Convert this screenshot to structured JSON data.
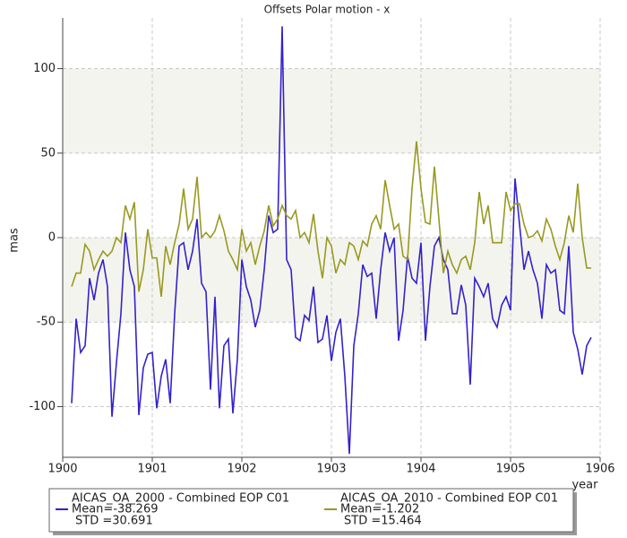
{
  "chart_data": {
    "type": "line",
    "title": "Offsets Polar motion - x",
    "x_label": "year",
    "y_label": "mas",
    "x": [
      1900.1,
      1900.15,
      1900.2,
      1900.25,
      1900.3,
      1900.35,
      1900.4,
      1900.45,
      1900.5,
      1900.55,
      1900.6,
      1900.65,
      1900.7,
      1900.75,
      1900.8,
      1900.85,
      1900.9,
      1900.95,
      1901.0,
      1901.05,
      1901.1,
      1901.15,
      1901.2,
      1901.25,
      1901.3,
      1901.35,
      1901.4,
      1901.45,
      1901.5,
      1901.55,
      1901.6,
      1901.65,
      1901.7,
      1901.75,
      1901.8,
      1901.85,
      1901.9,
      1901.95,
      1902.0,
      1902.05,
      1902.1,
      1902.15,
      1902.2,
      1902.25,
      1902.3,
      1902.35,
      1902.4,
      1902.45,
      1902.5,
      1902.55,
      1902.6,
      1902.65,
      1902.7,
      1902.75,
      1902.8,
      1902.85,
      1902.9,
      1902.95,
      1903.0,
      1903.05,
      1903.1,
      1903.15,
      1903.2,
      1903.25,
      1903.3,
      1903.35,
      1903.4,
      1903.45,
      1903.5,
      1903.55,
      1903.6,
      1903.65,
      1903.7,
      1903.75,
      1903.8,
      1903.85,
      1903.9,
      1903.95,
      1904.0,
      1904.05,
      1904.1,
      1904.15,
      1904.2,
      1904.25,
      1904.3,
      1904.35,
      1904.4,
      1904.45,
      1904.5,
      1904.55,
      1904.6,
      1904.65,
      1904.7,
      1904.75,
      1904.8,
      1904.85,
      1904.9,
      1904.95,
      1905.0,
      1905.05,
      1905.1,
      1905.15,
      1905.2,
      1905.25,
      1905.3,
      1905.35,
      1905.4,
      1905.45,
      1905.5,
      1905.55,
      1905.6,
      1905.65,
      1905.7,
      1905.75,
      1905.8,
      1905.85,
      1905.9
    ],
    "series": [
      {
        "name": "AICAS_OA_2000 - Combined EOP C01",
        "mean_label": "Mean=-38.269",
        "std_label": "STD =30.691",
        "color": "#3322cc",
        "values": [
          -98,
          -48,
          -68,
          -64,
          -24,
          -37,
          -21,
          -13,
          -29,
          -106,
          -74,
          -45,
          3,
          -19,
          -29,
          -105,
          -77,
          -69,
          -68,
          -101,
          -82,
          -72,
          -98,
          -45,
          -5,
          -3,
          -19,
          -8,
          11,
          -27,
          -32,
          -90,
          -35,
          -101,
          -64,
          -60,
          -104,
          -72,
          -13,
          -29,
          -37,
          -53,
          -43,
          -19,
          13,
          3,
          5,
          125,
          -13,
          -19,
          -59,
          -61,
          -46,
          -49,
          -29,
          -62,
          -60,
          -46,
          -73,
          -56,
          -48,
          -82,
          -128,
          -64,
          -45,
          -16,
          -23,
          -21,
          -48,
          -19,
          3,
          -8,
          0,
          -61,
          -43,
          -11,
          -24,
          -27,
          -3,
          -61,
          -29,
          -5,
          0,
          -13,
          -19,
          -45,
          -45,
          -28,
          -40,
          -87,
          -24,
          -29,
          -35,
          -27,
          -48,
          -53,
          -40,
          -35,
          -43,
          35,
          8,
          -19,
          -8,
          -19,
          -27,
          -48,
          -16,
          -21,
          -19,
          -43,
          -45,
          -5,
          -56,
          -66,
          -81,
          -64,
          -59
        ]
      },
      {
        "name": "AICAS_OA_2010 - Combined EOP C01",
        "mean_label": "Mean=-1.202",
        "std_label": "STD =15.464",
        "color": "#999922",
        "values": [
          -29,
          -21,
          -21,
          -4,
          -8,
          -19,
          -13,
          -8,
          -11,
          -8,
          0,
          -3,
          19,
          11,
          21,
          -32,
          -19,
          5,
          -12,
          -12,
          -35,
          -5,
          -16,
          -3,
          8,
          29,
          5,
          11,
          36,
          0,
          3,
          0,
          4,
          13,
          4,
          -8,
          -13,
          -19,
          5,
          -8,
          -3,
          -16,
          -5,
          4,
          19,
          7,
          11,
          19,
          13,
          11,
          16,
          0,
          3,
          -3,
          14,
          -8,
          -24,
          0,
          -5,
          -21,
          -13,
          -16,
          -3,
          -5,
          -13,
          -2,
          -5,
          8,
          13,
          5,
          34,
          19,
          5,
          8,
          -11,
          -13,
          29,
          57,
          29,
          9,
          8,
          42,
          11,
          -21,
          -8,
          -16,
          -21,
          -13,
          -11,
          -19,
          -3,
          27,
          8,
          19,
          -3,
          -3,
          -3,
          27,
          16,
          20,
          20,
          8,
          0,
          1,
          4,
          -2,
          11,
          5,
          -5,
          -13,
          -3,
          13,
          3,
          32,
          0,
          -18,
          -18
        ]
      }
    ],
    "xlim": [
      1900,
      1906
    ],
    "xticks": [
      1900,
      1901,
      1902,
      1903,
      1904,
      1905,
      1906
    ],
    "ylim": [
      -130,
      130
    ],
    "yticks": [
      -100,
      -50,
      0,
      50,
      100
    ],
    "grid": true,
    "shaded_bands": [
      [
        50,
        100
      ],
      [
        -50,
        0
      ]
    ],
    "band_color": "#f4f4ee"
  }
}
